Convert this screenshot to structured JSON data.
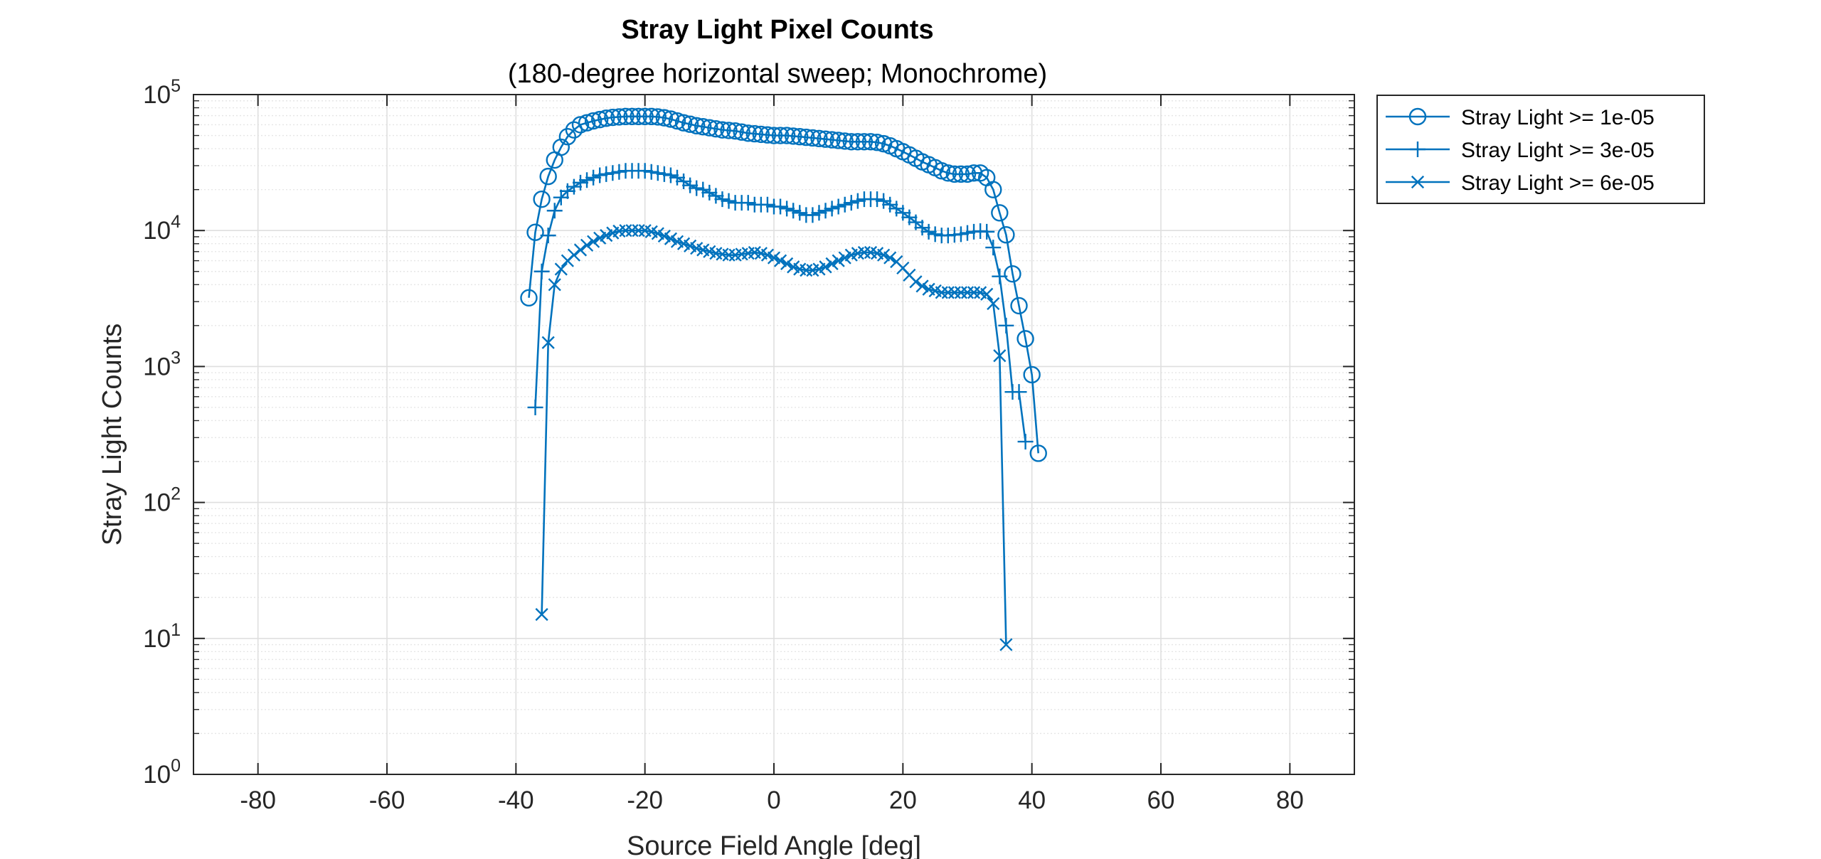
{
  "chart_data": {
    "type": "line",
    "title": "Stray Light Pixel Counts",
    "subtitle": "(180-degree horizontal sweep; Monochrome)",
    "xlabel": "Source Field Angle [deg]",
    "ylabel": "Stray Light Counts",
    "xlim": [
      -90,
      90
    ],
    "ylim": [
      1,
      100000
    ],
    "yscale": "log",
    "xticks": [
      -80,
      -60,
      -40,
      -20,
      0,
      20,
      40,
      60,
      80
    ],
    "xtick_labels": [
      "-80",
      "-60",
      "-40",
      "-20",
      "0",
      "20",
      "40",
      "60",
      "80"
    ],
    "yticks": [
      1,
      10,
      100,
      1000,
      10000,
      100000
    ],
    "ytick_base": "10",
    "ytick_exponents": [
      "0",
      "1",
      "2",
      "3",
      "4",
      "5"
    ],
    "grid": true,
    "legend_position": "outside-top-right",
    "series": [
      {
        "name": "Stray Light >= 1e-05",
        "marker": "circle",
        "color": "#0072BD",
        "points": [
          [
            -38,
            3200
          ],
          [
            -37,
            9700
          ],
          [
            -36,
            17000
          ],
          [
            -35,
            25000
          ],
          [
            -34,
            33000
          ],
          [
            -33,
            41000
          ],
          [
            -32,
            49000
          ],
          [
            -31,
            55000
          ],
          [
            -30,
            60000
          ],
          [
            -29,
            62000
          ],
          [
            -28,
            64000
          ],
          [
            -27,
            65500
          ],
          [
            -26,
            67000
          ],
          [
            -25,
            68000
          ],
          [
            -24,
            68500
          ],
          [
            -23,
            69000
          ],
          [
            -22,
            69000
          ],
          [
            -21,
            69000
          ],
          [
            -20,
            69000
          ],
          [
            -19,
            69000
          ],
          [
            -18,
            68500
          ],
          [
            -17,
            67500
          ],
          [
            -16,
            66000
          ],
          [
            -15,
            64000
          ],
          [
            -14,
            62000
          ],
          [
            -13,
            60500
          ],
          [
            -12,
            59000
          ],
          [
            -11,
            58000
          ],
          [
            -10,
            57000
          ],
          [
            -9,
            56000
          ],
          [
            -8,
            55000
          ],
          [
            -7,
            54500
          ],
          [
            -6,
            54000
          ],
          [
            -5,
            53000
          ],
          [
            -4,
            52000
          ],
          [
            -3,
            51500
          ],
          [
            -2,
            51000
          ],
          [
            -1,
            50500
          ],
          [
            0,
            50000
          ],
          [
            1,
            50000
          ],
          [
            2,
            50000
          ],
          [
            3,
            49500
          ],
          [
            4,
            49000
          ],
          [
            5,
            48500
          ],
          [
            6,
            48000
          ],
          [
            7,
            47500
          ],
          [
            8,
            47000
          ],
          [
            9,
            46500
          ],
          [
            10,
            46000
          ],
          [
            11,
            45500
          ],
          [
            12,
            45000
          ],
          [
            13,
            45000
          ],
          [
            14,
            45000
          ],
          [
            15,
            45000
          ],
          [
            16,
            44500
          ],
          [
            17,
            43500
          ],
          [
            18,
            42000
          ],
          [
            19,
            40000
          ],
          [
            20,
            38000
          ],
          [
            21,
            36000
          ],
          [
            22,
            34000
          ],
          [
            23,
            32000
          ],
          [
            24,
            30500
          ],
          [
            25,
            29000
          ],
          [
            26,
            27500
          ],
          [
            27,
            26500
          ],
          [
            28,
            26000
          ],
          [
            29,
            26000
          ],
          [
            30,
            26000
          ],
          [
            31,
            26500
          ],
          [
            32,
            26500
          ],
          [
            33,
            24500
          ],
          [
            34,
            20000
          ],
          [
            35,
            13500
          ],
          [
            36,
            9300
          ],
          [
            37,
            4800
          ],
          [
            38,
            2800
          ],
          [
            39,
            1600
          ],
          [
            40,
            870
          ],
          [
            41,
            230
          ]
        ]
      },
      {
        "name": "Stray Light >= 3e-05",
        "marker": "plus",
        "color": "#0072BD",
        "points": [
          [
            -37,
            500
          ],
          [
            -36,
            5000
          ],
          [
            -35,
            9200
          ],
          [
            -34,
            14000
          ],
          [
            -33,
            17500
          ],
          [
            -32,
            19500
          ],
          [
            -31,
            21000
          ],
          [
            -30,
            22500
          ],
          [
            -29,
            23500
          ],
          [
            -28,
            24500
          ],
          [
            -27,
            25500
          ],
          [
            -26,
            26000
          ],
          [
            -25,
            26500
          ],
          [
            -24,
            27000
          ],
          [
            -23,
            27500
          ],
          [
            -22,
            27500
          ],
          [
            -21,
            27500
          ],
          [
            -20,
            27500
          ],
          [
            -19,
            27000
          ],
          [
            -18,
            26500
          ],
          [
            -17,
            26000
          ],
          [
            -16,
            25500
          ],
          [
            -15,
            24500
          ],
          [
            -14,
            23000
          ],
          [
            -13,
            21500
          ],
          [
            -12,
            20500
          ],
          [
            -11,
            20000
          ],
          [
            -10,
            19000
          ],
          [
            -9,
            18000
          ],
          [
            -8,
            17000
          ],
          [
            -7,
            16500
          ],
          [
            -6,
            16000
          ],
          [
            -5,
            16000
          ],
          [
            -4,
            16000
          ],
          [
            -3,
            15500
          ],
          [
            -2,
            15500
          ],
          [
            -1,
            15500
          ],
          [
            0,
            15000
          ],
          [
            1,
            15000
          ],
          [
            2,
            14500
          ],
          [
            3,
            14000
          ],
          [
            4,
            13500
          ],
          [
            5,
            13000
          ],
          [
            6,
            13000
          ],
          [
            7,
            13500
          ],
          [
            8,
            14000
          ],
          [
            9,
            14500
          ],
          [
            10,
            15000
          ],
          [
            11,
            15500
          ],
          [
            12,
            16000
          ],
          [
            13,
            16500
          ],
          [
            14,
            17000
          ],
          [
            15,
            17000
          ],
          [
            16,
            17000
          ],
          [
            17,
            16500
          ],
          [
            18,
            15500
          ],
          [
            19,
            14500
          ],
          [
            20,
            13500
          ],
          [
            21,
            12500
          ],
          [
            22,
            11500
          ],
          [
            23,
            10500
          ],
          [
            24,
            9800
          ],
          [
            25,
            9400
          ],
          [
            26,
            9200
          ],
          [
            27,
            9200
          ],
          [
            28,
            9300
          ],
          [
            29,
            9400
          ],
          [
            30,
            9600
          ],
          [
            31,
            9800
          ],
          [
            32,
            9900
          ],
          [
            33,
            9800
          ],
          [
            34,
            7500
          ],
          [
            35,
            4600
          ],
          [
            36,
            2000
          ],
          [
            37,
            650
          ],
          [
            38,
            650
          ],
          [
            39,
            280
          ]
        ]
      },
      {
        "name": "Stray Light >= 6e-05",
        "marker": "x",
        "color": "#0072BD",
        "points": [
          [
            -36,
            15
          ],
          [
            -35,
            1500
          ],
          [
            -34,
            4000
          ],
          [
            -33,
            5200
          ],
          [
            -32,
            6000
          ],
          [
            -31,
            6600
          ],
          [
            -30,
            7200
          ],
          [
            -29,
            7800
          ],
          [
            -28,
            8300
          ],
          [
            -27,
            8800
          ],
          [
            -26,
            9200
          ],
          [
            -25,
            9600
          ],
          [
            -24,
            9900
          ],
          [
            -23,
            10000
          ],
          [
            -22,
            10000
          ],
          [
            -21,
            10000
          ],
          [
            -20,
            10000
          ],
          [
            -19,
            9800
          ],
          [
            -18,
            9500
          ],
          [
            -17,
            9100
          ],
          [
            -16,
            8700
          ],
          [
            -15,
            8300
          ],
          [
            -14,
            8000
          ],
          [
            -13,
            7700
          ],
          [
            -12,
            7400
          ],
          [
            -11,
            7200
          ],
          [
            -10,
            7000
          ],
          [
            -9,
            6800
          ],
          [
            -8,
            6700
          ],
          [
            -7,
            6600
          ],
          [
            -6,
            6600
          ],
          [
            -5,
            6700
          ],
          [
            -4,
            6800
          ],
          [
            -3,
            6900
          ],
          [
            -2,
            6800
          ],
          [
            -1,
            6600
          ],
          [
            0,
            6300
          ],
          [
            1,
            6000
          ],
          [
            2,
            5700
          ],
          [
            3,
            5400
          ],
          [
            4,
            5200
          ],
          [
            5,
            5100
          ],
          [
            6,
            5100
          ],
          [
            7,
            5200
          ],
          [
            8,
            5400
          ],
          [
            9,
            5700
          ],
          [
            10,
            6000
          ],
          [
            11,
            6300
          ],
          [
            12,
            6600
          ],
          [
            13,
            6800
          ],
          [
            14,
            6900
          ],
          [
            15,
            6900
          ],
          [
            16,
            6800
          ],
          [
            17,
            6600
          ],
          [
            18,
            6300
          ],
          [
            19,
            5900
          ],
          [
            20,
            5300
          ],
          [
            21,
            4700
          ],
          [
            22,
            4200
          ],
          [
            23,
            3900
          ],
          [
            24,
            3700
          ],
          [
            25,
            3600
          ],
          [
            26,
            3500
          ],
          [
            27,
            3500
          ],
          [
            28,
            3500
          ],
          [
            29,
            3500
          ],
          [
            30,
            3500
          ],
          [
            31,
            3500
          ],
          [
            32,
            3500
          ],
          [
            33,
            3400
          ],
          [
            34,
            2900
          ],
          [
            35,
            1200
          ],
          [
            36,
            9
          ]
        ]
      }
    ]
  }
}
